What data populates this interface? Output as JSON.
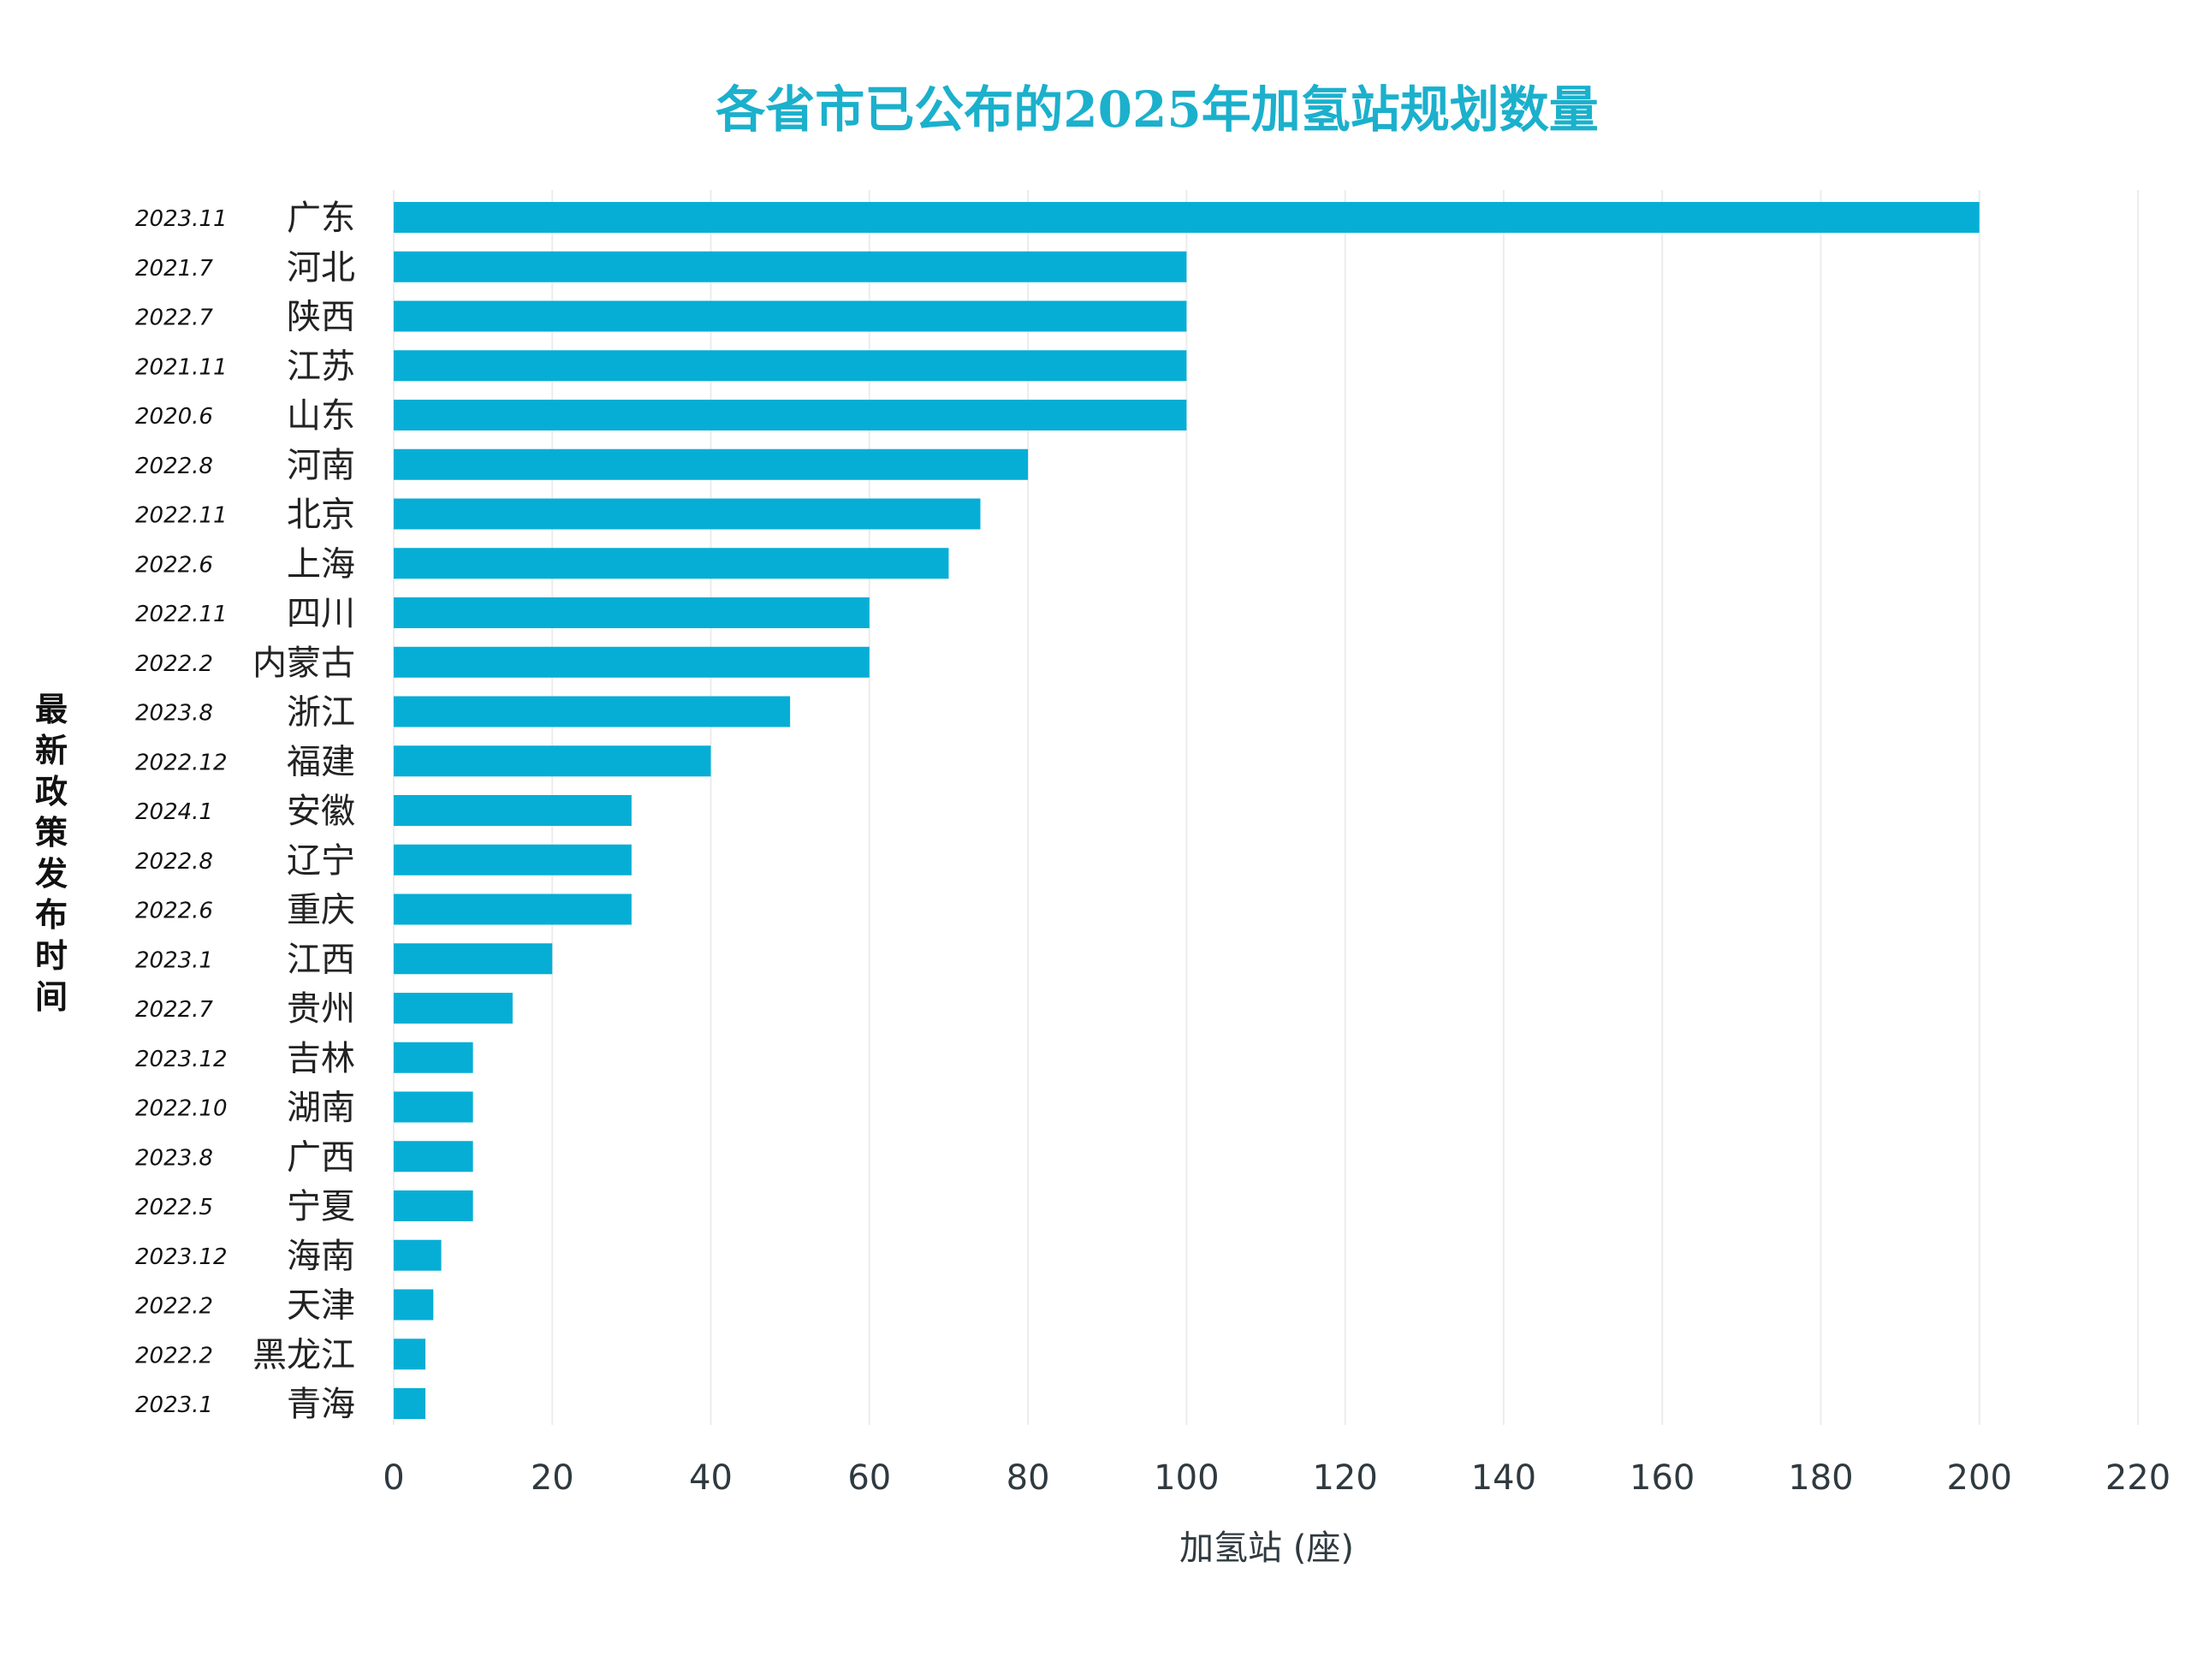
{
  "chart_data": {
    "type": "bar",
    "orientation": "horizontal",
    "title": "各省市已公布的2025年加氢站规划数量",
    "xlabel": "加氢站 (座)",
    "ylabel": "最新政策发布时间",
    "xlim": [
      0,
      220
    ],
    "xticks": [
      "0",
      "20",
      "40",
      "60",
      "80",
      "100",
      "120",
      "140",
      "160",
      "180",
      "200",
      "220"
    ],
    "grid": "vertical",
    "bar_color": "#06AED5",
    "title_color": "#1BB0CC",
    "categories": [
      "广东",
      "河北",
      "陕西",
      "江苏",
      "山东",
      "河南",
      "北京",
      "上海",
      "四川",
      "内蒙古",
      "浙江",
      "福建",
      "安徽",
      "辽宁",
      "重庆",
      "江西",
      "贵州",
      "吉林",
      "湖南",
      "广西",
      "宁夏",
      "海南",
      "天津",
      "黑龙江",
      "青海"
    ],
    "dates": [
      "2023.11",
      "2021.7",
      "2022.7",
      "2021.11",
      "2020.6",
      "2022.8",
      "2022.11",
      "2022.6",
      "2022.11",
      "2022.2",
      "2023.8",
      "2022.12",
      "2024.1",
      "2022.8",
      "2022.6",
      "2023.1",
      "2022.7",
      "2023.12",
      "2022.10",
      "2023.8",
      "2022.5",
      "2023.12",
      "2022.2",
      "2022.2",
      "2023.1"
    ],
    "values": [
      200,
      100,
      100,
      100,
      100,
      80,
      74,
      70,
      60,
      60,
      50,
      40,
      30,
      30,
      30,
      20,
      15,
      10,
      10,
      10,
      10,
      6,
      5,
      4,
      4
    ]
  }
}
